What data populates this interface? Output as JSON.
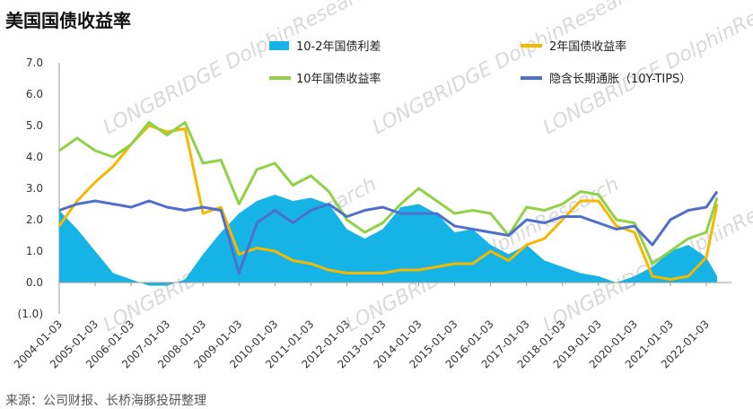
{
  "chart_data": {
    "type": "area+line",
    "title": "美国国债收益率",
    "source_note": "来源：公司财报、长桥海豚投研整理",
    "watermark": "LONGBRIDGE DolphinResearch",
    "ylim": [
      -1.0,
      7.0
    ],
    "ytick_labels": [
      "7.0",
      "6.0",
      "5.0",
      "4.0",
      "3.0",
      "2.0",
      "1.0",
      "0.0",
      "(1.0)"
    ],
    "ytick_values": [
      7,
      6,
      5,
      4,
      3,
      2,
      1,
      0,
      -1
    ],
    "xtick_labels": [
      "2004-01-03",
      "2005-01-03",
      "2006-01-03",
      "2007-01-03",
      "2008-01-03",
      "2009-01-03",
      "2010-01-03",
      "2011-01-03",
      "2012-01-03",
      "2013-01-03",
      "2014-01-03",
      "2015-01-03",
      "2016-01-03",
      "2017-01-03",
      "2018-01-03",
      "2019-01-03",
      "2020-01-03",
      "2021-01-03",
      "2022-01-03"
    ],
    "x": [
      2004.0,
      2004.5,
      2005.0,
      2005.5,
      2006.0,
      2006.5,
      2007.0,
      2007.5,
      2008.0,
      2008.5,
      2009.0,
      2009.5,
      2010.0,
      2010.5,
      2011.0,
      2011.5,
      2012.0,
      2012.5,
      2013.0,
      2013.5,
      2014.0,
      2014.5,
      2015.0,
      2015.5,
      2016.0,
      2016.5,
      2017.0,
      2017.5,
      2018.0,
      2018.5,
      2019.0,
      2019.5,
      2020.0,
      2020.5,
      2021.0,
      2021.5,
      2022.0,
      2022.3
    ],
    "series": [
      {
        "name": "10-2年国债利差",
        "kind": "area",
        "color": "#16b3e6",
        "values": [
          2.3,
          1.7,
          1.0,
          0.3,
          0.1,
          -0.1,
          -0.1,
          0.1,
          0.9,
          1.6,
          2.2,
          2.6,
          2.8,
          2.6,
          2.7,
          2.5,
          1.7,
          1.4,
          1.7,
          2.4,
          2.5,
          2.2,
          1.6,
          1.7,
          1.2,
          0.9,
          1.2,
          0.7,
          0.5,
          0.3,
          0.2,
          0.0,
          0.2,
          0.5,
          1.0,
          1.2,
          0.8,
          0.2
        ]
      },
      {
        "name": "2年国债收益率",
        "kind": "line",
        "color": "#f5b800",
        "values": [
          1.8,
          2.6,
          3.2,
          3.7,
          4.4,
          5.0,
          4.8,
          4.9,
          2.2,
          2.4,
          0.9,
          1.1,
          1.0,
          0.7,
          0.6,
          0.4,
          0.3,
          0.3,
          0.3,
          0.4,
          0.4,
          0.5,
          0.6,
          0.6,
          1.0,
          0.7,
          1.2,
          1.4,
          2.0,
          2.6,
          2.6,
          1.8,
          1.6,
          0.2,
          0.1,
          0.2,
          0.8,
          2.5
        ]
      },
      {
        "name": "10年国债收益率",
        "kind": "line",
        "color": "#8fd147",
        "values": [
          4.2,
          4.6,
          4.2,
          4.0,
          4.4,
          5.1,
          4.7,
          5.1,
          3.8,
          3.9,
          2.5,
          3.6,
          3.8,
          3.1,
          3.4,
          2.9,
          2.0,
          1.6,
          1.9,
          2.5,
          3.0,
          2.6,
          2.2,
          2.3,
          2.2,
          1.5,
          2.4,
          2.3,
          2.5,
          2.9,
          2.8,
          2.0,
          1.9,
          0.6,
          1.0,
          1.4,
          1.6,
          2.7
        ]
      },
      {
        "name": "隐含长期通胀（10Y-TIPS）",
        "kind": "line",
        "color": "#4e6fcb",
        "values": [
          2.3,
          2.5,
          2.6,
          2.5,
          2.4,
          2.6,
          2.4,
          2.3,
          2.4,
          2.3,
          0.3,
          1.9,
          2.3,
          1.9,
          2.3,
          2.5,
          2.1,
          2.3,
          2.4,
          2.2,
          2.2,
          2.2,
          1.8,
          1.7,
          1.6,
          1.5,
          2.0,
          1.9,
          2.1,
          2.1,
          1.9,
          1.7,
          1.8,
          1.2,
          2.0,
          2.3,
          2.4,
          2.9
        ]
      }
    ],
    "grid": false,
    "legend_position": "top"
  }
}
